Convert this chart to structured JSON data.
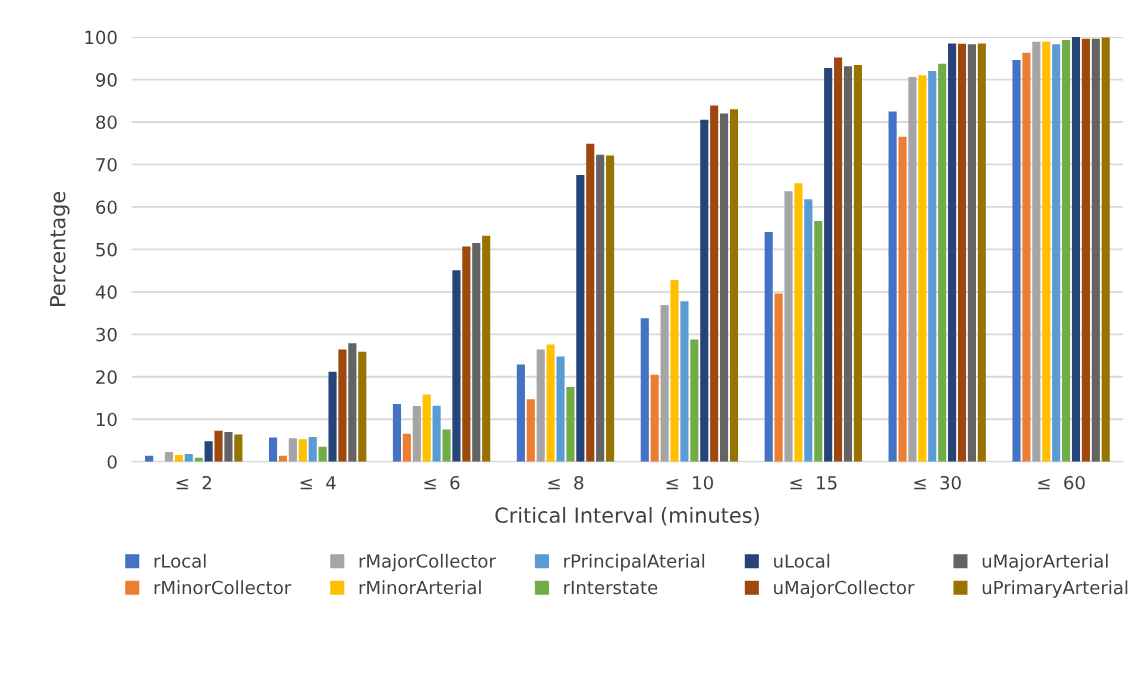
{
  "chart_data": {
    "type": "bar",
    "xlabel": "Critical Interval (minutes)",
    "ylabel": "Percentage",
    "categories": [
      "≤  2",
      "≤  4",
      "≤  6",
      "≤  8",
      "≤  10",
      "≤  15",
      "≤  30",
      "≤  60"
    ],
    "ylim": [
      0,
      100
    ],
    "yticks": [
      0,
      10,
      20,
      30,
      40,
      50,
      60,
      70,
      80,
      90,
      100
    ],
    "grid": "y",
    "legend": "bottom",
    "series": [
      {
        "name": "rLocal",
        "color": "#4472c4",
        "values": [
          1.4,
          5.7,
          13.6,
          22.9,
          33.8,
          54.1,
          82.5,
          94.6
        ]
      },
      {
        "name": "rMinorCollector",
        "color": "#ed7d31",
        "values": [
          0,
          1.4,
          6.6,
          14.7,
          20.5,
          39.6,
          76.5,
          96.3
        ]
      },
      {
        "name": "rMajorCollector",
        "color": "#a5a5a5",
        "values": [
          2.3,
          5.5,
          13.1,
          26.4,
          36.9,
          63.7,
          90.6,
          98.9
        ]
      },
      {
        "name": "rMinorArterial",
        "color": "#ffc000",
        "values": [
          1.6,
          5.3,
          15.8,
          27.6,
          42.8,
          65.6,
          91.0,
          98.9
        ]
      },
      {
        "name": "rPrincipalAterial",
        "color": "#5b9bd5",
        "values": [
          1.8,
          5.8,
          13.2,
          24.8,
          37.8,
          61.8,
          92.0,
          98.3
        ]
      },
      {
        "name": "rInterstate",
        "color": "#70ad47",
        "values": [
          0.9,
          3.5,
          7.6,
          17.6,
          28.8,
          56.7,
          93.7,
          99.3
        ]
      },
      {
        "name": "uLocal",
        "color": "#264478",
        "values": [
          4.8,
          21.2,
          45.1,
          67.5,
          80.5,
          92.7,
          98.5,
          100
        ]
      },
      {
        "name": "uMajorCollector",
        "color": "#9e480e",
        "values": [
          7.3,
          26.4,
          50.7,
          74.9,
          83.9,
          95.2,
          98.4,
          99.6
        ]
      },
      {
        "name": "uMajorArterial",
        "color": "#636363",
        "values": [
          7.0,
          27.9,
          51.5,
          72.3,
          82.0,
          93.1,
          98.3,
          99.6
        ]
      },
      {
        "name": "uPrimaryArterial",
        "color": "#997300",
        "values": [
          6.4,
          25.9,
          53.2,
          72.1,
          83.0,
          93.4,
          98.5,
          99.9
        ]
      }
    ]
  }
}
